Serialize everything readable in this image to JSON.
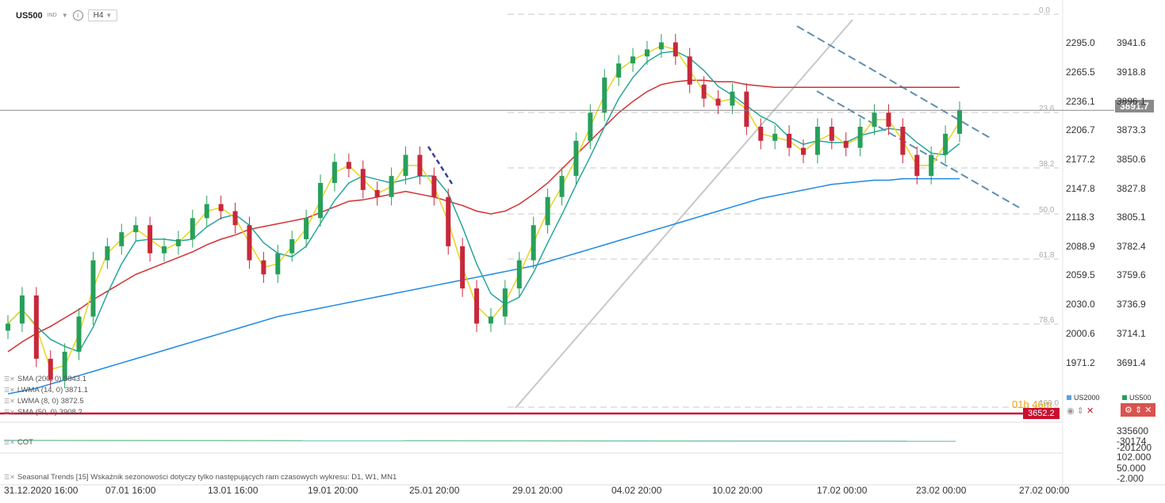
{
  "header": {
    "symbol": "US500",
    "type": "IND",
    "info_icon": "info-icon",
    "timeframe": "H4"
  },
  "indicators": [
    {
      "label": "SMA (200, 0) 3843.1",
      "color": "#1e88e5"
    },
    {
      "label": "LWMA (14, 0) 3871.1",
      "color": "#26a69a"
    },
    {
      "label": "LWMA (8, 0) 3872.5",
      "color": "#e6d520"
    },
    {
      "label": "SMA (50, 0) 3908.2",
      "color": "#d32f2f"
    }
  ],
  "sub_indicators": {
    "cot": "COT",
    "seasonal": "Seasonal Trends [15] Wskaźnik sezonowości dotyczy tylko następujących ram czasowych wykresu: D1, W1, MN1"
  },
  "axis_left_us2000": [
    "2295.0",
    "2265.5",
    "2236.1",
    "2206.7",
    "2177.2",
    "2147.8",
    "2118.3",
    "2088.9",
    "2059.5",
    "2030.0",
    "2000.6",
    "1971.2"
  ],
  "axis_right_us500": [
    "3941.6",
    "3918.8",
    "3896.1",
    "3873.3",
    "3850.6",
    "3827.8",
    "3805.1",
    "3782.4",
    "3759.6",
    "3736.9",
    "3714.1",
    "3691.4"
  ],
  "fib_labels": [
    "0.0",
    "23.6",
    "38.2",
    "50.0",
    "61.8",
    "78.6",
    "100.0"
  ],
  "current_price": "3891.7",
  "red_level": "3652.2",
  "countdown": "01h 46m",
  "compare": {
    "us2000": "US2000",
    "us500": "US500"
  },
  "cot_axis": [
    "335600",
    "-30174",
    "-201200"
  ],
  "seasonal_axis": [
    "102.000",
    "50.000",
    "-2.000"
  ],
  "time_axis": [
    "31.12.2020  16:00",
    "07.01  16:00",
    "13.01  16:00",
    "19.01  20:00",
    "25.01  20:00",
    "29.01  20:00",
    "04.02  20:00",
    "10.02  20:00",
    "17.02  00:00",
    "23.02  00:00",
    "27.02  00:00"
  ],
  "chart_data": {
    "type": "candlestick",
    "symbol": "US500",
    "timeframe": "H4",
    "y_range_us500": [
      3680,
      3960
    ],
    "current": 3891.7,
    "closes": [
      3740,
      3760,
      3715,
      3700,
      3720,
      3745,
      3785,
      3795,
      3805,
      3810,
      3790,
      3795,
      3800,
      3815,
      3825,
      3820,
      3810,
      3785,
      3775,
      3790,
      3800,
      3815,
      3840,
      3855,
      3850,
      3835,
      3830,
      3845,
      3860,
      3845,
      3830,
      3795,
      3765,
      3740,
      3745,
      3765,
      3785,
      3810,
      3830,
      3845,
      3870,
      3890,
      3915,
      3925,
      3930,
      3935,
      3940,
      3930,
      3910,
      3900,
      3895,
      3905,
      3880,
      3870,
      3875,
      3865,
      3860,
      3880,
      3870,
      3865,
      3880,
      3890,
      3880,
      3860,
      3845,
      3860,
      3875,
      3892
    ],
    "sma50": [
      3720,
      3727,
      3733,
      3738,
      3744,
      3750,
      3757,
      3763,
      3769,
      3775,
      3779,
      3783,
      3787,
      3791,
      3796,
      3800,
      3803,
      3807,
      3809,
      3811,
      3813,
      3815,
      3819,
      3823,
      3827,
      3828,
      3830,
      3832,
      3834,
      3832,
      3830,
      3827,
      3824,
      3820,
      3818,
      3820,
      3825,
      3832,
      3840,
      3850,
      3860,
      3870,
      3880,
      3890,
      3898,
      3905,
      3910,
      3912,
      3913,
      3913,
      3912,
      3912,
      3910,
      3909,
      3908,
      3908,
      3908,
      3908,
      3908,
      3908,
      3908,
      3908,
      3908,
      3908,
      3908,
      3908,
      3908,
      3908
    ],
    "sma200": [
      3690,
      3692,
      3694,
      3697,
      3700,
      3703,
      3706,
      3709,
      3712,
      3715,
      3718,
      3721,
      3724,
      3727,
      3730,
      3733,
      3736,
      3739,
      3742,
      3745,
      3747,
      3749,
      3751,
      3753,
      3755,
      3757,
      3759,
      3761,
      3763,
      3765,
      3767,
      3769,
      3771,
      3773,
      3775,
      3777,
      3779,
      3781,
      3784,
      3787,
      3790,
      3793,
      3796,
      3799,
      3802,
      3805,
      3808,
      3811,
      3814,
      3817,
      3820,
      3823,
      3826,
      3829,
      3831,
      3833,
      3835,
      3837,
      3839,
      3840,
      3841,
      3842,
      3842,
      3843,
      3843,
      3843,
      3843,
      3843
    ]
  },
  "colors": {
    "bull": "#27a05a",
    "bear": "#c8283a",
    "sma50": "#d32f2f",
    "sma200": "#1e88e5",
    "lwma14": "#26a69a",
    "lwma8": "#e6d520",
    "accent": "#d9534f"
  }
}
